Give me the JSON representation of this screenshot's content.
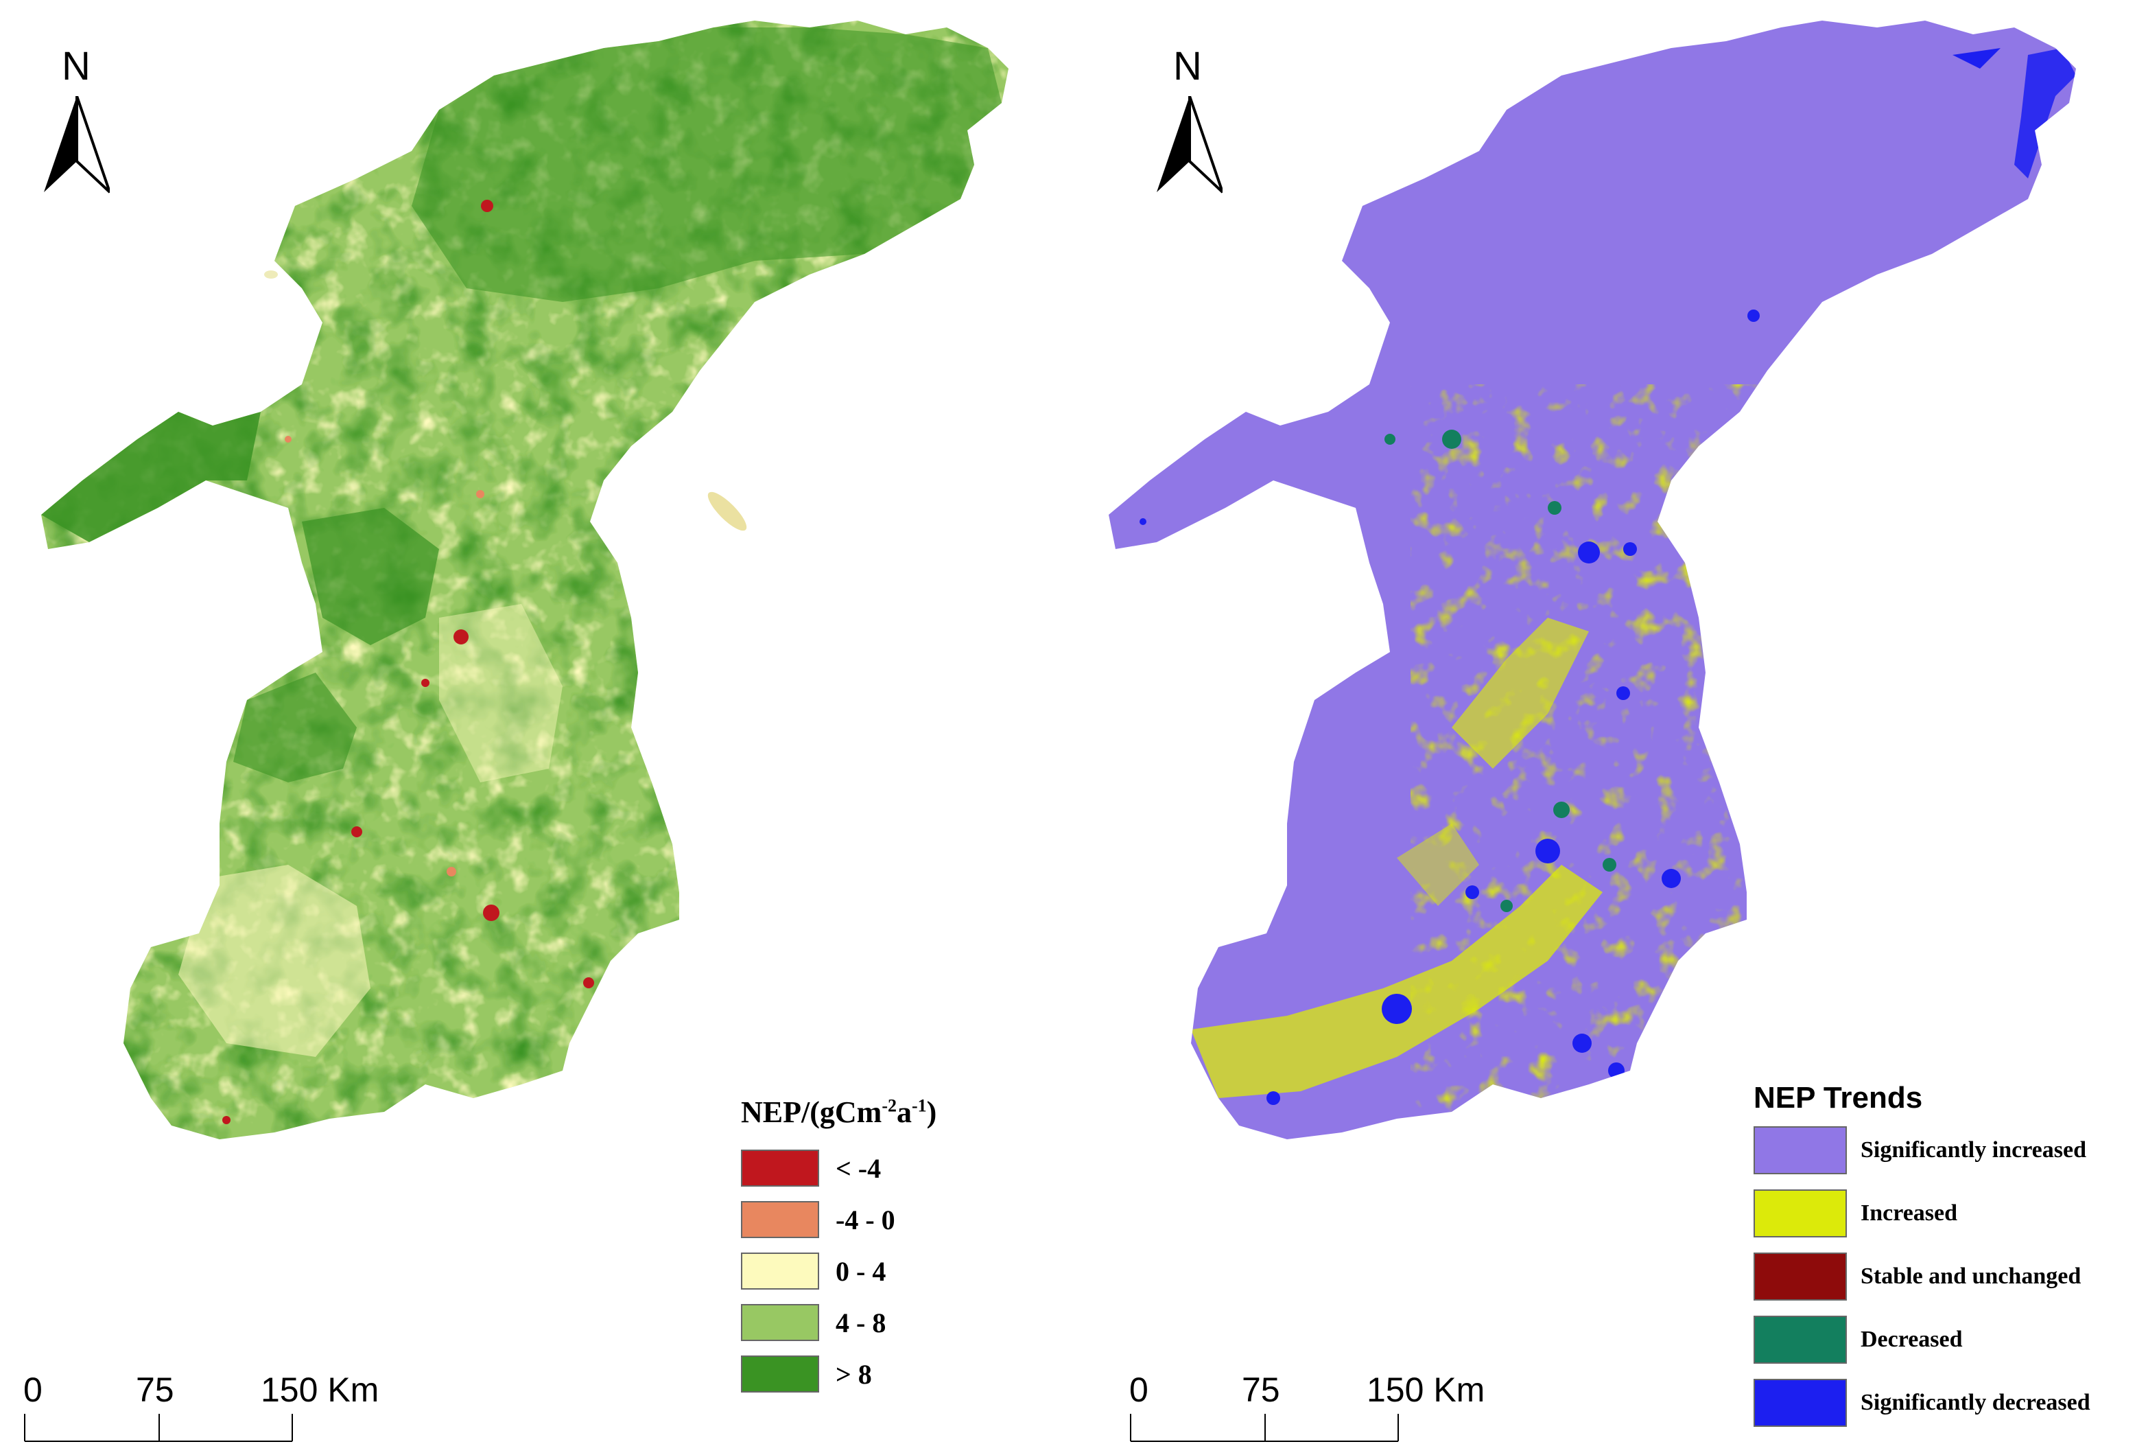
{
  "maps": [
    {
      "north_label": "N",
      "scale": {
        "ticks": [
          "0",
          "75",
          "150 Km"
        ]
      },
      "legend": {
        "title_main": "NEP/(gCm",
        "title_sup1": "-2",
        "title_mid": "a",
        "title_sup2": "-1",
        "title_end": ")",
        "items": [
          {
            "label": "< -4",
            "color": "#c0171e"
          },
          {
            "label": "-4 - 0",
            "color": "#e8875f"
          },
          {
            "label": "0 - 4",
            "color": "#fdfabd"
          },
          {
            "label": "4 - 8",
            "color": "#98c863"
          },
          {
            "label": "> 8",
            "color": "#3a9323"
          }
        ]
      }
    },
    {
      "north_label": "N",
      "scale": {
        "ticks": [
          "0",
          "75",
          "150 Km"
        ]
      },
      "legend": {
        "title": "NEP Trends",
        "items": [
          {
            "label": "Significantly increased",
            "color": "#9077e6"
          },
          {
            "label": "Increased",
            "color": "#dcea0a"
          },
          {
            "label": "Stable and unchanged",
            "color": "#8e0b0b"
          },
          {
            "label": "Decreased",
            "color": "#137f5e"
          },
          {
            "label": "Significantly decreased",
            "color": "#1c1ff0"
          }
        ]
      }
    }
  ]
}
